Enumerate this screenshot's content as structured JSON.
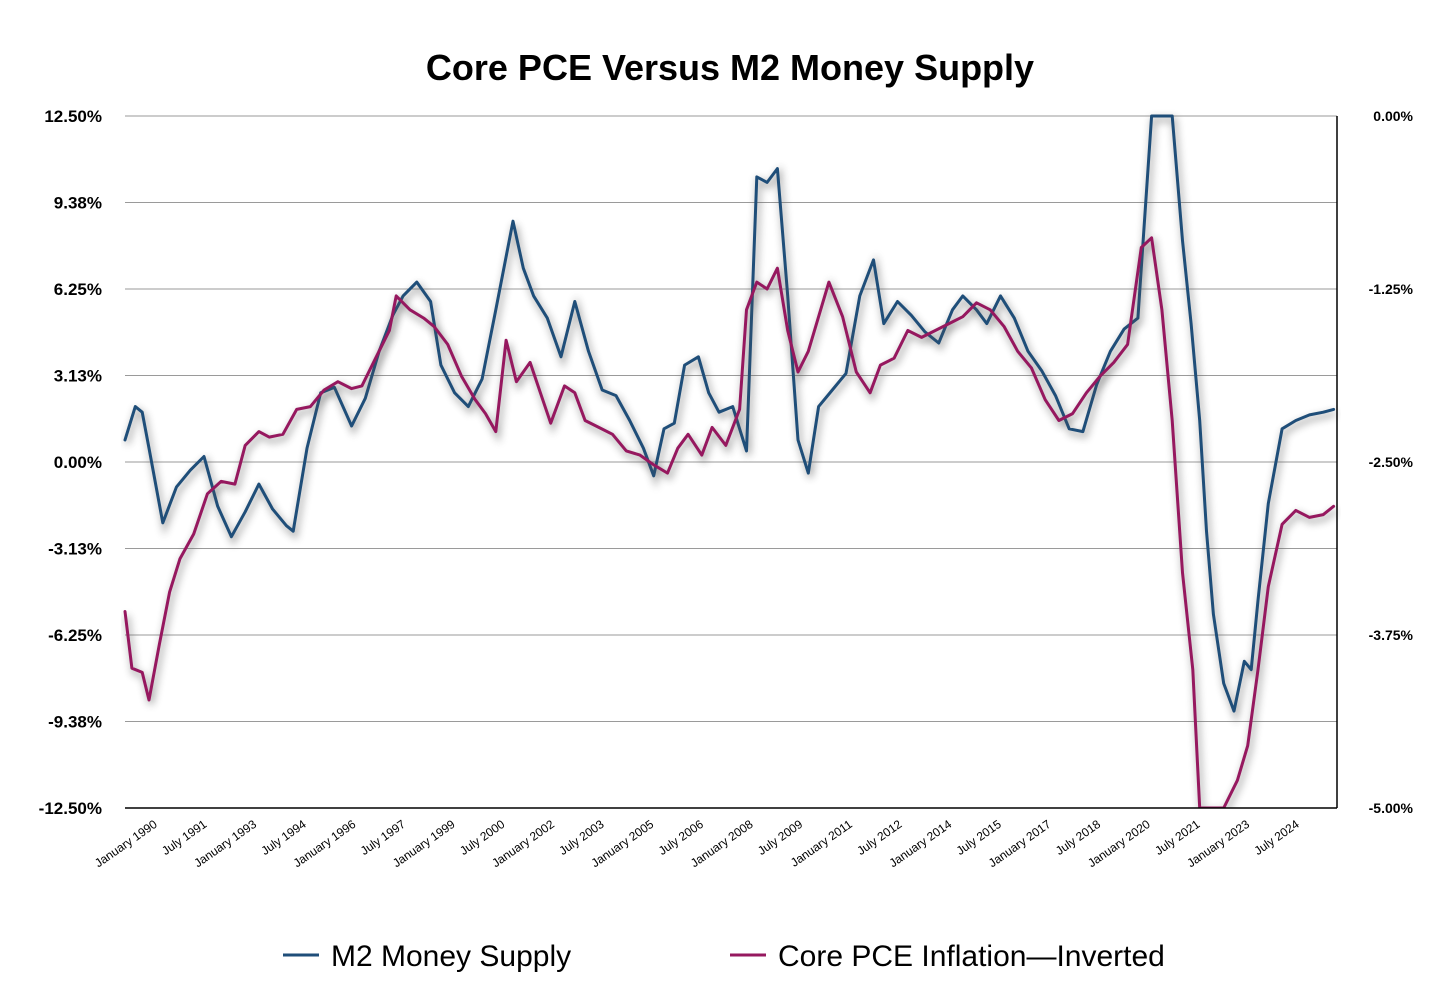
{
  "chart_data": {
    "type": "line",
    "title": "Core PCE Versus M2 Money Supply",
    "xlabel": "",
    "ylabel": "",
    "x_tick_labels": [
      "January 1990",
      "July 1991",
      "January 1993",
      "July 1994",
      "January 1996",
      "July 1997",
      "January 1999",
      "July 2000",
      "January 2002",
      "July 2003",
      "January 2005",
      "July 2006",
      "January 2008",
      "July 2009",
      "January 2011",
      "July 2012",
      "January 2014",
      "July 2015",
      "January 2017",
      "July 2018",
      "January 2020",
      "July 2021",
      "January 2023",
      "July 2024"
    ],
    "y_left_ticks": [
      "12.50%",
      "9.38%",
      "6.25%",
      "3.13%",
      "0.00%",
      "-3.13%",
      "-6.25%",
      "-9.38%",
      "-12.50%"
    ],
    "y_right_ticks": [
      "0.00%",
      "-1.25%",
      "-2.50%",
      "-3.75%",
      "-5.00%"
    ],
    "ylim_left": [
      -12.5,
      12.5
    ],
    "ylim_right": [
      -5.0,
      0.0
    ],
    "xlim": [
      1989.9,
      2025.2
    ],
    "grid": true,
    "legend_position": "bottom",
    "series": [
      {
        "name": "M2 Money Supply",
        "axis": "left",
        "color": "#1f4e79",
        "x": [
          1989.9,
          1990.2,
          1990.4,
          1990.6,
          1991.0,
          1991.4,
          1991.8,
          1992.2,
          1992.6,
          1993.0,
          1993.4,
          1993.8,
          1994.2,
          1994.6,
          1994.8,
          1995.2,
          1995.6,
          1996.0,
          1996.5,
          1996.9,
          1997.3,
          1997.7,
          1998.0,
          1998.4,
          1998.8,
          1999.1,
          1999.5,
          1999.9,
          2000.3,
          2000.7,
          2001.2,
          2001.5,
          2001.8,
          2002.2,
          2002.6,
          2003.0,
          2003.4,
          2003.8,
          2004.2,
          2004.6,
          2005.0,
          2005.3,
          2005.6,
          2005.9,
          2006.2,
          2006.6,
          2006.9,
          2007.2,
          2007.6,
          2008.0,
          2008.3,
          2008.6,
          2008.9,
          2009.2,
          2009.5,
          2009.8,
          2010.1,
          2010.5,
          2010.9,
          2011.3,
          2011.7,
          2012.0,
          2012.4,
          2012.8,
          2013.2,
          2013.6,
          2014.0,
          2014.3,
          2014.7,
          2015.0,
          2015.4,
          2015.8,
          2016.2,
          2016.6,
          2017.0,
          2017.4,
          2017.8,
          2018.2,
          2018.6,
          2019.0,
          2019.4,
          2019.8,
          2019.95,
          2020.1,
          2020.4,
          2020.7,
          2020.95,
          2021.2,
          2021.4,
          2021.6,
          2021.9,
          2022.2,
          2022.5,
          2022.7,
          2022.9,
          2023.2,
          2023.6,
          2024.0,
          2024.4,
          2024.8,
          2025.1
        ],
        "y": [
          0.8,
          2.0,
          1.8,
          0.5,
          -2.2,
          -0.9,
          -0.3,
          0.2,
          -1.6,
          -2.7,
          -1.8,
          -0.8,
          -1.7,
          -2.3,
          -2.5,
          0.5,
          2.5,
          2.7,
          1.3,
          2.3,
          4.0,
          5.3,
          6.0,
          6.5,
          5.8,
          3.5,
          2.5,
          2.0,
          3.0,
          5.5,
          8.7,
          7.0,
          6.0,
          5.2,
          3.8,
          5.8,
          4.0,
          2.6,
          2.4,
          1.5,
          0.5,
          -0.5,
          1.2,
          1.4,
          3.5,
          3.8,
          2.5,
          1.8,
          2.0,
          0.4,
          10.3,
          10.1,
          10.6,
          6.0,
          0.8,
          -0.4,
          2.0,
          2.6,
          3.2,
          6.0,
          7.3,
          5.0,
          5.8,
          5.3,
          4.7,
          4.3,
          5.5,
          6.0,
          5.5,
          5.0,
          6.0,
          5.2,
          4.0,
          3.3,
          2.4,
          1.2,
          1.1,
          2.8,
          4.0,
          4.8,
          5.2,
          12.5,
          12.5,
          12.5,
          12.5,
          8.0,
          5.0,
          1.5,
          -2.5,
          -5.5,
          -8.0,
          -9.0,
          -7.2,
          -7.5,
          -5.0,
          -1.5,
          1.2,
          1.5,
          1.7,
          1.8,
          1.9
        ]
      },
      {
        "name": "Core PCE Inflation—Inverted",
        "axis": "right",
        "color": "#96185f",
        "x": [
          1989.9,
          1990.1,
          1990.4,
          1990.6,
          1990.9,
          1991.2,
          1991.5,
          1991.9,
          1992.3,
          1992.7,
          1993.1,
          1993.4,
          1993.8,
          1994.1,
          1994.5,
          1994.9,
          1995.3,
          1995.7,
          1996.1,
          1996.5,
          1996.8,
          1997.2,
          1997.6,
          1997.8,
          1998.2,
          1998.6,
          1998.9,
          1999.3,
          1999.7,
          2000.1,
          2000.4,
          2000.7,
          2001.0,
          2001.3,
          2001.7,
          2002.0,
          2002.3,
          2002.7,
          2003.0,
          2003.3,
          2003.7,
          2004.1,
          2004.5,
          2004.9,
          2005.3,
          2005.7,
          2006.0,
          2006.3,
          2006.7,
          2007.0,
          2007.4,
          2007.8,
          2008.0,
          2008.3,
          2008.6,
          2008.9,
          2009.2,
          2009.5,
          2009.8,
          2010.1,
          2010.4,
          2010.8,
          2011.2,
          2011.6,
          2011.9,
          2012.3,
          2012.7,
          2013.1,
          2013.5,
          2013.9,
          2014.3,
          2014.7,
          2015.1,
          2015.5,
          2015.9,
          2016.3,
          2016.7,
          2017.1,
          2017.5,
          2017.9,
          2018.3,
          2018.7,
          2019.1,
          2019.5,
          2019.8,
          2020.1,
          2020.4,
          2020.7,
          2021.0,
          2021.2,
          2021.4,
          2021.6,
          2021.9,
          2022.3,
          2022.6,
          2022.9,
          2023.2,
          2023.6,
          2024.0,
          2024.4,
          2024.8,
          2025.1
        ],
        "y": [
          -3.58,
          -3.99,
          -4.02,
          -4.22,
          -3.82,
          -3.44,
          -3.2,
          -3.02,
          -2.73,
          -2.64,
          -2.66,
          -2.38,
          -2.28,
          -2.32,
          -2.3,
          -2.12,
          -2.1,
          -1.98,
          -1.92,
          -1.97,
          -1.95,
          -1.75,
          -1.55,
          -1.3,
          -1.4,
          -1.46,
          -1.52,
          -1.65,
          -1.88,
          -2.05,
          -2.15,
          -2.28,
          -1.62,
          -1.92,
          -1.78,
          -2.0,
          -2.22,
          -1.95,
          -2.0,
          -2.2,
          -2.25,
          -2.3,
          -2.42,
          -2.45,
          -2.52,
          -2.58,
          -2.4,
          -2.3,
          -2.45,
          -2.25,
          -2.38,
          -2.12,
          -1.4,
          -1.2,
          -1.25,
          -1.1,
          -1.55,
          -1.85,
          -1.7,
          -1.45,
          -1.2,
          -1.45,
          -1.85,
          -2.0,
          -1.8,
          -1.75,
          -1.55,
          -1.6,
          -1.55,
          -1.5,
          -1.45,
          -1.35,
          -1.4,
          -1.52,
          -1.7,
          -1.82,
          -2.05,
          -2.2,
          -2.15,
          -2.0,
          -1.88,
          -1.78,
          -1.65,
          -0.95,
          -0.88,
          -1.4,
          -2.2,
          -3.3,
          -4.0,
          -5.0,
          -5.0,
          -5.0,
          -5.0,
          -4.8,
          -4.55,
          -4.0,
          -3.4,
          -2.95,
          -2.85,
          -2.9,
          -2.88,
          -2.82
        ]
      }
    ]
  }
}
